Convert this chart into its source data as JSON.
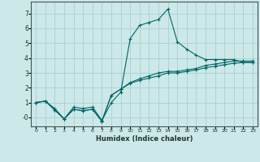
{
  "xlabel": "Humidex (Indice chaleur)",
  "ylabel": "",
  "bg_color": "#cce8e8",
  "grid_color": "#aacfcf",
  "line_color": "#006666",
  "xlim": [
    -0.5,
    23.5
  ],
  "ylim": [
    -0.6,
    7.8
  ],
  "xticks": [
    0,
    1,
    2,
    3,
    4,
    5,
    6,
    7,
    8,
    9,
    10,
    11,
    12,
    13,
    14,
    15,
    16,
    17,
    18,
    19,
    20,
    21,
    22,
    23
  ],
  "yticks": [
    0,
    1,
    2,
    3,
    4,
    5,
    6,
    7
  ],
  "series": [
    {
      "x": [
        0,
        1,
        2,
        3,
        4,
        5,
        6,
        7,
        8,
        9,
        10,
        11,
        12,
        13,
        14,
        15,
        16,
        17,
        18,
        19,
        20,
        21,
        22,
        23
      ],
      "y": [
        1.0,
        1.1,
        0.6,
        -0.1,
        0.7,
        0.6,
        0.7,
        -0.2,
        1.0,
        1.7,
        5.3,
        6.2,
        6.4,
        6.6,
        7.3,
        5.1,
        4.6,
        4.2,
        3.9,
        3.9,
        3.9,
        3.9,
        3.7,
        3.7
      ]
    },
    {
      "x": [
        0,
        1,
        2,
        3,
        4,
        5,
        6,
        7,
        8,
        9,
        10,
        11,
        12,
        13,
        14,
        15,
        16,
        17,
        18,
        19,
        20,
        21,
        22,
        23
      ],
      "y": [
        1.0,
        1.1,
        0.5,
        -0.1,
        0.55,
        0.45,
        0.55,
        -0.25,
        1.5,
        1.9,
        2.3,
        2.5,
        2.65,
        2.8,
        3.0,
        3.0,
        3.1,
        3.2,
        3.35,
        3.45,
        3.55,
        3.65,
        3.7,
        3.7
      ]
    },
    {
      "x": [
        0,
        1,
        2,
        3,
        4,
        5,
        6,
        7,
        8,
        9,
        10,
        11,
        12,
        13,
        14,
        15,
        16,
        17,
        18,
        19,
        20,
        21,
        22,
        23
      ],
      "y": [
        1.0,
        1.1,
        0.5,
        -0.1,
        0.55,
        0.45,
        0.55,
        -0.25,
        1.5,
        1.9,
        2.35,
        2.6,
        2.8,
        3.0,
        3.1,
        3.1,
        3.2,
        3.3,
        3.5,
        3.6,
        3.7,
        3.8,
        3.8,
        3.8
      ]
    }
  ]
}
